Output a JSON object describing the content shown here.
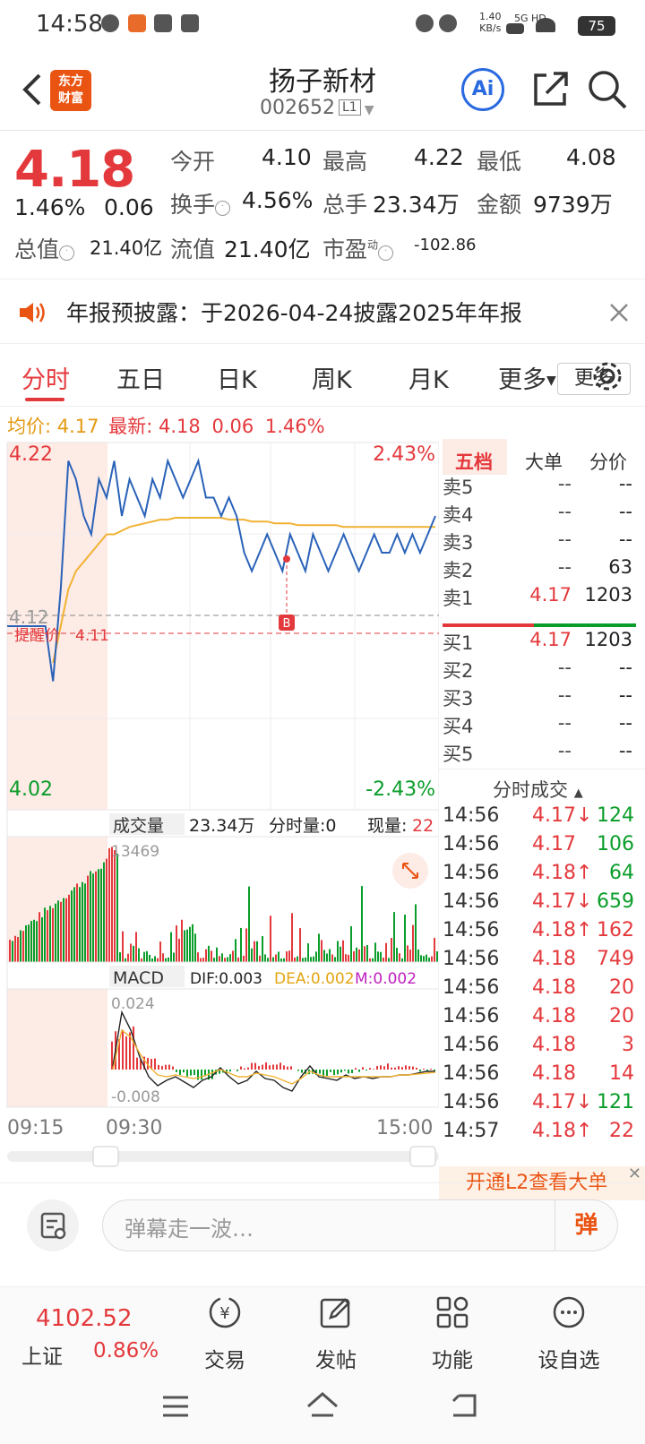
{
  "status": {
    "time": "14:58",
    "net_speed": "1.40",
    "net_unit": "KB/s",
    "sig": "5G HD",
    "battery": "75"
  },
  "header": {
    "logo_line1": "东方",
    "logo_line2": "财富",
    "name": "扬子新材",
    "code": "002652",
    "level": "L1",
    "ai": "Ai"
  },
  "quote": {
    "price": "4.18",
    "pct": "1.46%",
    "chg": "0.06",
    "open_label": "今开",
    "open": "4.10",
    "high_label": "最高",
    "high": "4.22",
    "low_label": "最低",
    "low": "4.08",
    "turnover_label": "换手",
    "turnover": "4.56%",
    "vol_label": "总手",
    "vol": "23.34万",
    "amt_label": "金额",
    "amt": "9739万",
    "mcap_label": "总值",
    "mcap": "21.40亿",
    "float_label": "流值",
    "float": "21.40亿",
    "pe_label": "市盈",
    "pe_sup": "动",
    "pe": "-102.86",
    "more": "更多"
  },
  "notice": {
    "text": "年报预披露：于2026-04-24披露2025年年报"
  },
  "tabs": [
    "分时",
    "五日",
    "日K",
    "周K",
    "月K",
    "更多"
  ],
  "avg_row": {
    "avg_label": "均价:",
    "avg": "4.17",
    "last_label": "最新:",
    "last": "4.18",
    "chg": "0.06",
    "pct": "1.46%"
  },
  "chart_data": {
    "type": "line",
    "price_axis": {
      "top": "4.22",
      "bottom": "4.02",
      "mid": "4.12",
      "top_pct": "2.43%",
      "bottom_pct": "-2.43%"
    },
    "alert": {
      "label": "提醒价",
      "value": "4.11"
    },
    "volume": {
      "label": "成交量",
      "total": "23.34万",
      "per_label": "分时量:0",
      "now_label": "现量:",
      "now": "22",
      "max": "13469"
    },
    "macd": {
      "label": "MACD",
      "dif": "DIF:0.003",
      "dea": "DEA:0.002",
      "m": "M:0.002",
      "top": "0.024",
      "bottom": "-0.008"
    },
    "time_axis": [
      "09:15",
      "09:30",
      "15:00"
    ],
    "marker": "B",
    "price_series": [
      4.12,
      4.12,
      4.12,
      4.12,
      4.12,
      4.12,
      4.09,
      4.14,
      4.21,
      4.2,
      4.18,
      4.17,
      4.2,
      4.19,
      4.21,
      4.18,
      4.2,
      4.19,
      4.18,
      4.2,
      4.19,
      4.21,
      4.2,
      4.19,
      4.2,
      4.21,
      4.19,
      4.19,
      4.18,
      4.19,
      4.18,
      4.16,
      4.15,
      4.16,
      4.17,
      4.16,
      4.15,
      4.17,
      4.16,
      4.15,
      4.17,
      4.16,
      4.15,
      4.16,
      4.17,
      4.16,
      4.15,
      4.16,
      4.17,
      4.16,
      4.16,
      4.17,
      4.16,
      4.17,
      4.16,
      4.17,
      4.18
    ],
    "avg_series": [
      4.12,
      4.12,
      4.12,
      4.12,
      4.12,
      4.12,
      4.1,
      4.12,
      4.14,
      4.15,
      4.155,
      4.16,
      4.165,
      4.17,
      4.17,
      4.172,
      4.174,
      4.175,
      4.176,
      4.177,
      4.178,
      4.178,
      4.179,
      4.179,
      4.179,
      4.179,
      4.179,
      4.179,
      4.179,
      4.178,
      4.178,
      4.178,
      4.177,
      4.177,
      4.177,
      4.176,
      4.176,
      4.176,
      4.175,
      4.175,
      4.175,
      4.175,
      4.175,
      4.175,
      4.174,
      4.174,
      4.174,
      4.174,
      4.174,
      4.174,
      4.174,
      4.174,
      4.174,
      4.174,
      4.174,
      4.174,
      4.174
    ]
  },
  "orderbook": {
    "tabs": [
      "五档",
      "大单",
      "分价"
    ],
    "asks": [
      {
        "l": "卖5",
        "p": "--",
        "v": "--"
      },
      {
        "l": "卖4",
        "p": "--",
        "v": "--"
      },
      {
        "l": "卖3",
        "p": "--",
        "v": "--"
      },
      {
        "l": "卖2",
        "p": "--",
        "v": "63"
      },
      {
        "l": "卖1",
        "p": "4.17",
        "v": "1203"
      }
    ],
    "bids": [
      {
        "l": "买1",
        "p": "4.17",
        "v": "1203"
      },
      {
        "l": "买2",
        "p": "--",
        "v": "--"
      },
      {
        "l": "买3",
        "p": "--",
        "v": "--"
      },
      {
        "l": "买4",
        "p": "--",
        "v": "--"
      },
      {
        "l": "买5",
        "p": "--",
        "v": "--"
      }
    ]
  },
  "trades": {
    "title": "分时成交",
    "rows": [
      {
        "t": "14:56",
        "p": "4.17↓",
        "v": "124",
        "c": "green"
      },
      {
        "t": "14:56",
        "p": "4.17",
        "v": "106",
        "c": "green"
      },
      {
        "t": "14:56",
        "p": "4.18↑",
        "v": "64",
        "c": "green"
      },
      {
        "t": "14:56",
        "p": "4.17↓",
        "v": "659",
        "c": "green"
      },
      {
        "t": "14:56",
        "p": "4.18↑",
        "v": "162",
        "c": "red"
      },
      {
        "t": "14:56",
        "p": "4.18",
        "v": "749",
        "c": "red"
      },
      {
        "t": "14:56",
        "p": "4.18",
        "v": "20",
        "c": "red"
      },
      {
        "t": "14:56",
        "p": "4.18",
        "v": "20",
        "c": "red"
      },
      {
        "t": "14:56",
        "p": "4.18",
        "v": "3",
        "c": "red"
      },
      {
        "t": "14:56",
        "p": "4.18",
        "v": "14",
        "c": "red"
      },
      {
        "t": "14:56",
        "p": "4.17↓",
        "v": "121",
        "c": "green"
      },
      {
        "t": "14:57",
        "p": "4.18↑",
        "v": "22",
        "c": "red"
      }
    ],
    "l2": "开通L2查看大单"
  },
  "comment": {
    "placeholder": "弹幕走一波…",
    "dan": "弹"
  },
  "bottom": {
    "index_val": "4102.52",
    "index_name": "上证",
    "index_pct": "0.86%",
    "items": [
      "交易",
      "发帖",
      "功能",
      "设自选"
    ]
  },
  "colors": {
    "up": "#e4393c",
    "down": "#0a9d2a",
    "accent": "#ea5413",
    "price_line": "#2a62b8",
    "avg_line": "#f2b233"
  }
}
